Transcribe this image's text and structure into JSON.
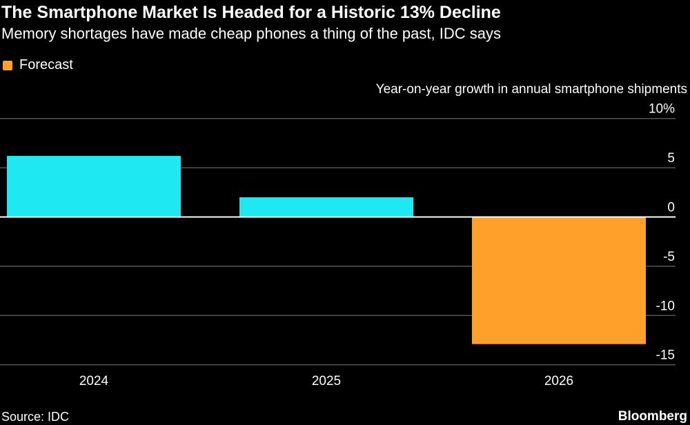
{
  "title": "The Smartphone Market Is Headed for a Historic 13% Decline",
  "subtitle": "Memory shortages have made cheap phones a thing of the past, IDC says",
  "source": "Source: IDC",
  "brand": "Bloomberg",
  "chart_data": {
    "type": "bar",
    "categories": [
      "2024",
      "2025",
      "2026"
    ],
    "values": [
      6.2,
      2.0,
      -12.9
    ],
    "forecast": [
      false,
      false,
      true
    ],
    "ylabel": "Year-on-year growth in annual smartphone shipments",
    "ylim": [
      -15,
      10
    ],
    "yticks": [
      10,
      5,
      0,
      -5,
      -10,
      -15
    ],
    "ytick_labels": [
      "10%",
      "5",
      "0",
      "-5",
      "-10",
      "-15"
    ],
    "legend": [
      {
        "label": "Forecast",
        "color": "#ffa02b"
      }
    ],
    "legend_position": "top-left",
    "grid": true,
    "colors": {
      "actual": "#1ee9f3",
      "forecast": "#ffa02b",
      "grid": "#555555",
      "zero": "#ffffff"
    }
  }
}
